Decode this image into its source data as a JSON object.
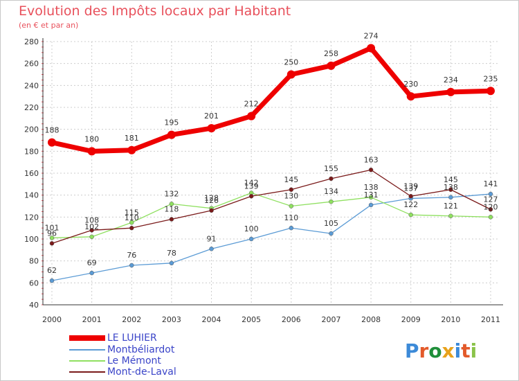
{
  "chart_data": {
    "type": "line",
    "title": "Evolution des Impôts locaux par Habitant",
    "subtitle": "(en € et par an)",
    "categories": [
      "2000",
      "2001",
      "2002",
      "2003",
      "2004",
      "2005",
      "2006",
      "2007",
      "2008",
      "2009",
      "2010",
      "2011"
    ],
    "ylim": [
      40,
      280
    ],
    "yticks": [
      40,
      60,
      80,
      100,
      120,
      140,
      160,
      180,
      200,
      220,
      240,
      260,
      280
    ],
    "grid": true,
    "legend_position": "bottom-left",
    "series": [
      {
        "name": "LE LUHIER",
        "color": "#ee0000",
        "values": [
          188,
          180,
          181,
          195,
          201,
          212,
          250,
          258,
          274,
          230,
          234,
          235
        ]
      },
      {
        "name": "Montbéliardot",
        "color": "#5b9bd5",
        "values": [
          62,
          69,
          76,
          78,
          91,
          100,
          110,
          105,
          131,
          137,
          138,
          141
        ]
      },
      {
        "name": "Le Mémont",
        "color": "#8fe060",
        "values": [
          101,
          102,
          115,
          132,
          128,
          142,
          130,
          134,
          138,
          122,
          121,
          120
        ]
      },
      {
        "name": "Mont-de-Laval",
        "color": "#7a1a1a",
        "values": [
          96,
          108,
          110,
          118,
          126,
          139,
          145,
          155,
          163,
          139,
          145,
          127
        ]
      }
    ]
  },
  "logo": {
    "letters": [
      "P",
      "r",
      "o",
      "x",
      "i",
      "t",
      "i"
    ],
    "colors": [
      "#3c8ad8",
      "#e35a2a",
      "#1f8f3a",
      "#e8a21b",
      "#3c8ad8",
      "#e35a2a",
      "#8bc34a"
    ]
  }
}
